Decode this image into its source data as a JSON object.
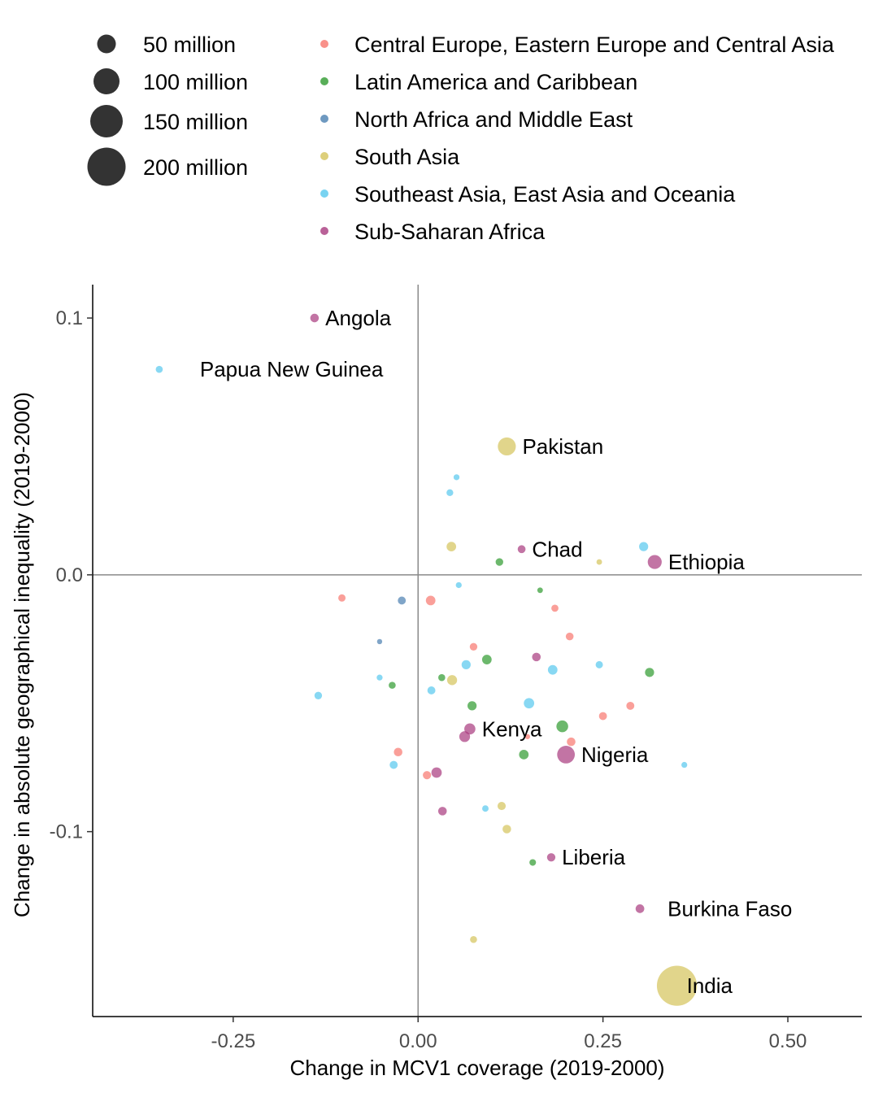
{
  "chart_data": {
    "type": "scatter",
    "xlabel": "Change in MCV1 coverage (2019-2000)",
    "ylabel": "Change in absolute geographical inequality (2019-2000)",
    "xlim": [
      -0.44,
      0.6
    ],
    "ylim": [
      -0.172,
      0.113
    ],
    "x_ticks": [
      -0.25,
      0.0,
      0.25,
      0.5
    ],
    "x_tick_labels": [
      "-0.25",
      "0.00",
      "0.25",
      "0.50"
    ],
    "y_ticks": [
      -0.1,
      0.0,
      0.1
    ],
    "y_tick_labels": [
      "-0.1",
      "0.0",
      "0.1"
    ],
    "reference_lines": {
      "x": 0,
      "y": 0
    },
    "grid": false,
    "legend_position": "top",
    "size_legend": {
      "title": "",
      "entries": [
        {
          "label": "50 million",
          "value": 50
        },
        {
          "label": "100 million",
          "value": 100
        },
        {
          "label": "150 million",
          "value": 150
        },
        {
          "label": "200 million",
          "value": 200
        }
      ]
    },
    "regions": [
      {
        "name": "Central Europe, Eastern Europe and Central Asia",
        "color": "#F8766D"
      },
      {
        "name": "Latin America and Caribbean",
        "color": "#2E9A2E"
      },
      {
        "name": "North Africa and Middle East",
        "color": "#4A7FB0"
      },
      {
        "name": "South Asia",
        "color": "#D4C35A"
      },
      {
        "name": "Southeast Asia, East Asia and Oceania",
        "color": "#56C8EE"
      },
      {
        "name": "Sub-Saharan Africa",
        "color": "#A8397E"
      }
    ],
    "points": [
      {
        "x": -0.14,
        "y": 0.1,
        "region": 5,
        "size": 20,
        "label": "Angola"
      },
      {
        "x": -0.35,
        "y": 0.08,
        "region": 4,
        "size": 8,
        "label": "Papua New Guinea"
      },
      {
        "x": 0.12,
        "y": 0.05,
        "region": 3,
        "size": 200,
        "label": "Pakistan"
      },
      {
        "x": 0.14,
        "y": 0.01,
        "region": 5,
        "size": 14,
        "label": "Chad"
      },
      {
        "x": 0.32,
        "y": 0.005,
        "region": 5,
        "size": 100,
        "label": "Ethiopia"
      },
      {
        "x": 0.07,
        "y": -0.06,
        "region": 5,
        "size": 50,
        "label": "Kenya"
      },
      {
        "x": 0.2,
        "y": -0.07,
        "region": 5,
        "size": 190,
        "label": "Nigeria"
      },
      {
        "x": 0.18,
        "y": -0.11,
        "region": 5,
        "size": 18,
        "label": "Liberia"
      },
      {
        "x": 0.3,
        "y": -0.13,
        "region": 5,
        "size": 21,
        "label": "Burkina Faso"
      },
      {
        "x": 0.35,
        "y": -0.16,
        "region": 3,
        "size": 1350,
        "label": "India"
      },
      {
        "x": 0.052,
        "y": 0.038,
        "region": 4,
        "size": 3
      },
      {
        "x": 0.043,
        "y": 0.032,
        "region": 4,
        "size": 7
      },
      {
        "x": 0.045,
        "y": 0.011,
        "region": 3,
        "size": 30
      },
      {
        "x": 0.11,
        "y": 0.005,
        "region": 1,
        "size": 12
      },
      {
        "x": 0.245,
        "y": 0.005,
        "region": 3,
        "size": 2
      },
      {
        "x": 0.305,
        "y": 0.011,
        "region": 4,
        "size": 25
      },
      {
        "x": 0.055,
        "y": -0.004,
        "region": 4,
        "size": 3
      },
      {
        "x": 0.165,
        "y": -0.006,
        "region": 1,
        "size": 2
      },
      {
        "x": -0.103,
        "y": -0.009,
        "region": 0,
        "size": 10
      },
      {
        "x": -0.022,
        "y": -0.01,
        "region": 2,
        "size": 15
      },
      {
        "x": 0.017,
        "y": -0.01,
        "region": 0,
        "size": 30
      },
      {
        "x": 0.185,
        "y": -0.013,
        "region": 0,
        "size": 9
      },
      {
        "x": 0.205,
        "y": -0.024,
        "region": 0,
        "size": 13
      },
      {
        "x": -0.052,
        "y": -0.026,
        "region": 2,
        "size": 1
      },
      {
        "x": 0.075,
        "y": -0.028,
        "region": 0,
        "size": 12
      },
      {
        "x": 0.093,
        "y": -0.033,
        "region": 1,
        "size": 30
      },
      {
        "x": 0.16,
        "y": -0.032,
        "region": 5,
        "size": 20
      },
      {
        "x": 0.065,
        "y": -0.035,
        "region": 4,
        "size": 25
      },
      {
        "x": 0.182,
        "y": -0.037,
        "region": 4,
        "size": 30
      },
      {
        "x": 0.245,
        "y": -0.035,
        "region": 4,
        "size": 10
      },
      {
        "x": 0.313,
        "y": -0.038,
        "region": 1,
        "size": 25
      },
      {
        "x": 0.032,
        "y": -0.04,
        "region": 1,
        "size": 8
      },
      {
        "x": 0.046,
        "y": -0.041,
        "region": 3,
        "size": 35
      },
      {
        "x": -0.052,
        "y": -0.04,
        "region": 4,
        "size": 3
      },
      {
        "x": -0.035,
        "y": -0.043,
        "region": 1,
        "size": 8
      },
      {
        "x": 0.018,
        "y": -0.045,
        "region": 4,
        "size": 15
      },
      {
        "x": -0.135,
        "y": -0.047,
        "region": 4,
        "size": 12
      },
      {
        "x": 0.15,
        "y": -0.05,
        "region": 4,
        "size": 40
      },
      {
        "x": 0.073,
        "y": -0.051,
        "region": 1,
        "size": 25
      },
      {
        "x": 0.287,
        "y": -0.051,
        "region": 0,
        "size": 15
      },
      {
        "x": 0.25,
        "y": -0.055,
        "region": 0,
        "size": 15
      },
      {
        "x": 0.195,
        "y": -0.059,
        "region": 1,
        "size": 60
      },
      {
        "x": 0.148,
        "y": -0.063,
        "region": 0,
        "size": 1
      },
      {
        "x": 0.207,
        "y": -0.065,
        "region": 0,
        "size": 20
      },
      {
        "x": 0.063,
        "y": -0.063,
        "region": 5,
        "size": 45
      },
      {
        "x": 0.143,
        "y": -0.07,
        "region": 1,
        "size": 30
      },
      {
        "x": -0.027,
        "y": -0.069,
        "region": 0,
        "size": 20
      },
      {
        "x": -0.033,
        "y": -0.074,
        "region": 4,
        "size": 15
      },
      {
        "x": 0.012,
        "y": -0.078,
        "region": 0,
        "size": 17
      },
      {
        "x": 0.025,
        "y": -0.077,
        "region": 5,
        "size": 40
      },
      {
        "x": 0.36,
        "y": -0.074,
        "region": 4,
        "size": 3
      },
      {
        "x": 0.033,
        "y": -0.092,
        "region": 5,
        "size": 20
      },
      {
        "x": 0.091,
        "y": -0.091,
        "region": 4,
        "size": 5
      },
      {
        "x": 0.113,
        "y": -0.09,
        "region": 3,
        "size": 17
      },
      {
        "x": 0.12,
        "y": -0.099,
        "region": 3,
        "size": 20
      },
      {
        "x": 0.155,
        "y": -0.112,
        "region": 1,
        "size": 6
      },
      {
        "x": 0.075,
        "y": -0.142,
        "region": 3,
        "size": 8
      }
    ]
  }
}
